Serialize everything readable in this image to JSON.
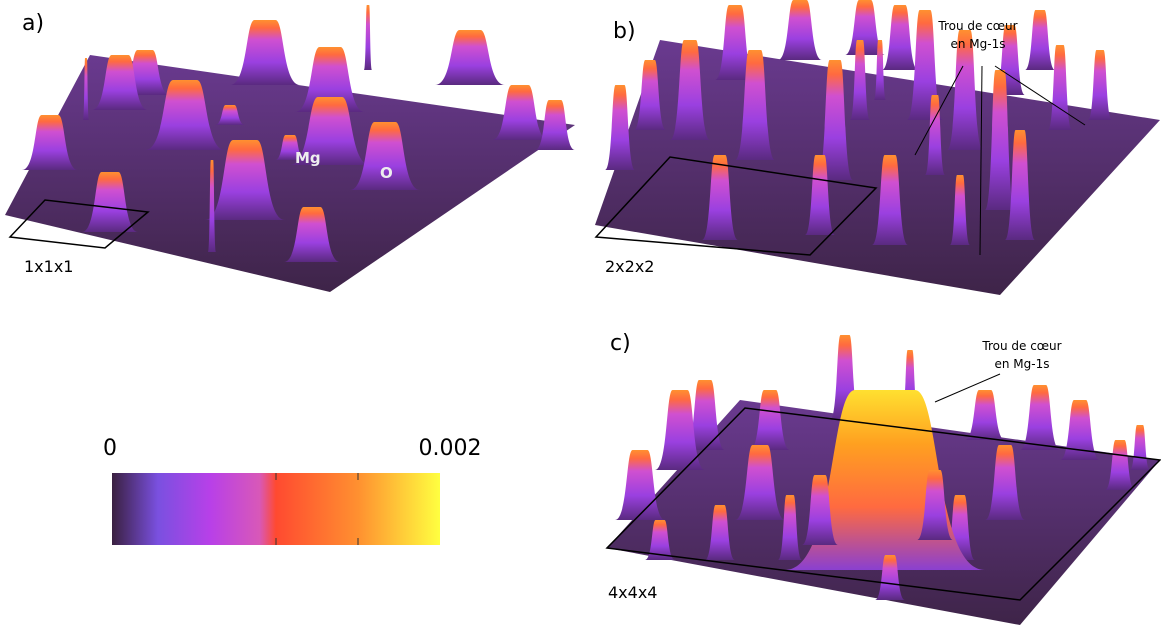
{
  "panels": [
    {
      "label": "a)",
      "cell": "1x1x1",
      "atoms": [
        "Mg",
        "O"
      ]
    },
    {
      "label": "b)",
      "cell": "2x2x2",
      "note": [
        "Trou de cœur",
        "en Mg-1s"
      ]
    },
    {
      "label": "c)",
      "cell": "4x4x4",
      "note": [
        "Trou de cœur",
        "en Mg-1s"
      ]
    }
  ],
  "colorbar": {
    "min": 0,
    "max": 0.002
  }
}
